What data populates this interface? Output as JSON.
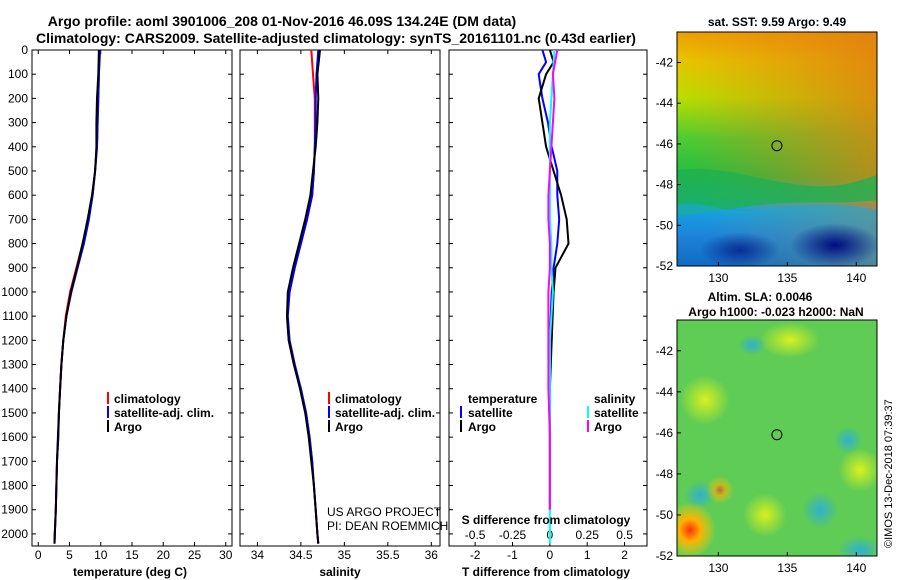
{
  "title_line1": "Argo profile: aoml 3901006_208 01-Nov-2016 46.09S 134.24E (DM data)",
  "title_line2": "Climatology: CARS2009. Satellite-adjusted climatology: synTS_20161101.nc (0.43d earlier)",
  "map1_title": "sat. SST: 9.59 Argo: 9.49",
  "map2_title1": "Altim. SLA: 0.0046",
  "map2_title2": "Argo h1000: -0.023 h2000: NaN",
  "watermark": "©IMOS 13-Dec-2018 07:39:37",
  "project_line1": "US ARGO PROJECT",
  "project_line2": "PI: DEAN ROEMMICH",
  "colors": {
    "climatology": "#ff0000",
    "satellite": "#0000ff",
    "argo": "#000000",
    "sat_salinity": "#00ffff",
    "clim_salinity": "#ff00ff"
  },
  "chart_data": [
    {
      "type": "line",
      "xlabel": "temperature (deg C)",
      "ylabel": "",
      "xlim": [
        -1,
        31
      ],
      "ylim": [
        2050,
        0
      ],
      "xticks": [
        0,
        5,
        10,
        15,
        20,
        25,
        30
      ],
      "yticks": [
        0,
        100,
        200,
        300,
        400,
        500,
        600,
        700,
        800,
        900,
        1000,
        1100,
        1200,
        1300,
        1400,
        1500,
        1600,
        1700,
        1800,
        1900,
        2000
      ],
      "legend": [
        "climatology",
        "satellite-adj. clim.",
        "Argo"
      ],
      "legend_position": "center-right",
      "series": [
        {
          "name": "climatology",
          "color": "#ff0000",
          "depth": [
            0,
            100,
            200,
            300,
            400,
            500,
            600,
            700,
            800,
            900,
            1000,
            1100,
            1200,
            1300,
            1400,
            1500,
            1600,
            1700,
            1800,
            1900,
            2000,
            2040
          ],
          "values": [
            9.8,
            9.7,
            9.6,
            9.5,
            9.4,
            9.1,
            8.7,
            8.0,
            7.1,
            6.1,
            5.1,
            4.4,
            4.0,
            3.7,
            3.5,
            3.3,
            3.2,
            3.0,
            2.9,
            2.8,
            2.65,
            2.6
          ]
        },
        {
          "name": "satellite-adj. clim.",
          "color": "#0000ff",
          "depth": [
            0,
            100,
            200,
            300,
            400,
            500,
            600,
            700,
            800,
            900,
            1000,
            1100,
            1200,
            1300,
            1400,
            1500,
            1600,
            1700,
            1800,
            1900,
            2000,
            2040
          ],
          "values": [
            9.9,
            9.7,
            9.6,
            9.5,
            9.4,
            9.1,
            8.7,
            8.1,
            7.3,
            6.3,
            5.3,
            4.5,
            4.0,
            3.7,
            3.5,
            3.3,
            3.2,
            3.0,
            2.9,
            2.8,
            2.65,
            2.6
          ]
        },
        {
          "name": "Argo",
          "color": "#000000",
          "depth": [
            0,
            100,
            200,
            300,
            400,
            500,
            600,
            700,
            800,
            900,
            1000,
            1100,
            1200,
            1300,
            1400,
            1500,
            1600,
            1700,
            1800,
            1900,
            2000,
            2040
          ],
          "values": [
            9.7,
            9.6,
            9.4,
            9.3,
            9.3,
            9.1,
            8.6,
            7.9,
            7.1,
            6.2,
            5.2,
            4.5,
            4.0,
            3.7,
            3.5,
            3.3,
            3.15,
            3.0,
            2.9,
            2.8,
            2.65,
            2.6
          ]
        }
      ]
    },
    {
      "type": "line",
      "xlabel": "salinity",
      "ylabel": "",
      "xlim": [
        33.8,
        36.1
      ],
      "ylim": [
        2050,
        0
      ],
      "xticks": [
        34,
        34.5,
        35,
        35.5,
        36
      ],
      "legend": [
        "climatology",
        "satellite-adj. clim.",
        "Argo"
      ],
      "legend_position": "center-right",
      "series": [
        {
          "name": "climatology",
          "color": "#ff0000",
          "depth": [
            0,
            100,
            200,
            300,
            400,
            500,
            600,
            700,
            800,
            900,
            1000,
            1100,
            1200,
            1300,
            1400,
            1500,
            1600,
            1700,
            1800,
            1900,
            2000,
            2040
          ],
          "values": [
            34.62,
            34.64,
            34.66,
            34.66,
            34.66,
            34.65,
            34.63,
            34.57,
            34.5,
            34.42,
            34.36,
            34.34,
            34.36,
            34.42,
            34.5,
            34.56,
            34.6,
            34.63,
            34.65,
            34.67,
            34.69,
            34.7
          ]
        },
        {
          "name": "satellite-adj. clim.",
          "color": "#0000ff",
          "depth": [
            0,
            100,
            200,
            300,
            400,
            500,
            600,
            700,
            800,
            900,
            1000,
            1100,
            1200,
            1300,
            1400,
            1500,
            1600,
            1700,
            1800,
            1900,
            2000,
            2040
          ],
          "values": [
            34.7,
            34.68,
            34.67,
            34.67,
            34.66,
            34.65,
            34.63,
            34.57,
            34.5,
            34.43,
            34.37,
            34.35,
            34.37,
            34.43,
            34.5,
            34.56,
            34.6,
            34.63,
            34.65,
            34.67,
            34.69,
            34.7
          ]
        },
        {
          "name": "Argo",
          "color": "#000000",
          "depth": [
            0,
            100,
            200,
            300,
            400,
            500,
            600,
            700,
            800,
            900,
            1000,
            1100,
            1200,
            1300,
            1400,
            1500,
            1600,
            1700,
            1800,
            1900,
            2000,
            2040
          ],
          "values": [
            34.72,
            34.69,
            34.7,
            34.69,
            34.67,
            34.64,
            34.61,
            34.55,
            34.48,
            34.41,
            34.35,
            34.34,
            34.36,
            34.42,
            34.49,
            34.55,
            34.59,
            34.62,
            34.65,
            34.67,
            34.69,
            34.7
          ]
        }
      ]
    },
    {
      "type": "line",
      "xlabel": "T difference from climatology",
      "xlabel_top": "S difference from climatology",
      "xlim": [
        -2.7,
        2.6
      ],
      "ylim": [
        2050,
        0
      ],
      "xticks": [
        -2,
        -1,
        0,
        1,
        2
      ],
      "xticks_top": [
        -0.5,
        -0.25,
        0,
        0.25,
        0.5
      ],
      "xticklabels_top": [
        "-0.5",
        "-0.25",
        "0",
        "0.25",
        "0.5"
      ],
      "legend_groups": [
        {
          "title": "temperature",
          "entries": [
            "satellite",
            "Argo"
          ]
        },
        {
          "title": "salinity",
          "entries": [
            "satellite",
            "Argo"
          ]
        }
      ],
      "series": [
        {
          "name": "temperature satellite",
          "color": "#0000ff",
          "depth": [
            0,
            50,
            100,
            150,
            200,
            300,
            400,
            500,
            600,
            700,
            800,
            900,
            1000,
            1200,
            1400,
            1600,
            1800,
            1900
          ],
          "values": [
            -0.2,
            -0.1,
            -0.3,
            -0.25,
            -0.2,
            -0.05,
            0.05,
            0.2,
            0.2,
            0.25,
            0.2,
            0.1,
            0.05,
            0.0,
            0.0,
            0.0,
            0.0,
            0.0
          ]
        },
        {
          "name": "temperature Argo",
          "color": "#000000",
          "depth": [
            0,
            50,
            100,
            150,
            200,
            300,
            400,
            500,
            600,
            700,
            800,
            900,
            1000,
            1200,
            1400,
            1600,
            1800,
            1900
          ],
          "values": [
            0.0,
            0.1,
            -0.1,
            -0.2,
            -0.3,
            -0.2,
            -0.1,
            0.1,
            0.3,
            0.45,
            0.5,
            0.15,
            0.1,
            0.05,
            0.0,
            0.0,
            0.0,
            0.0
          ]
        },
        {
          "name": "salinity satellite",
          "color": "#00ffff",
          "depth": [
            0,
            100,
            200,
            300,
            400,
            500,
            600,
            700,
            800,
            900,
            1000,
            1200,
            1400,
            1600,
            1800,
            2000,
            2040
          ],
          "values": [
            0.03,
            0.02,
            0.01,
            0.0,
            0.0,
            0.0,
            0.0,
            0.0,
            0.01,
            0.01,
            0.02,
            0.0,
            0.0,
            0.0,
            0.0,
            0.0,
            0.0
          ]
        },
        {
          "name": "salinity Argo",
          "color": "#ff00ff",
          "depth": [
            0,
            100,
            200,
            300,
            400,
            500,
            600,
            700,
            800,
            900,
            1000,
            1200,
            1400,
            1600,
            1800,
            1900
          ],
          "values": [
            0.05,
            0.02,
            0.03,
            0.02,
            0.01,
            0.0,
            -0.01,
            -0.01,
            0.0,
            0.0,
            -0.01,
            -0.01,
            -0.01,
            0.0,
            0.0,
            0.0
          ]
        }
      ]
    },
    {
      "type": "heatmap",
      "title": "sat. SST: 9.59 Argo: 9.49",
      "xlim": [
        127,
        141.5
      ],
      "ylim": [
        -52,
        -40.5
      ],
      "xticks": [
        130,
        135,
        140
      ],
      "yticks": [
        -42,
        -44,
        -46,
        -48,
        -50,
        -52
      ],
      "marker": [
        134.24,
        -46.09
      ]
    },
    {
      "type": "heatmap",
      "title": "Altim. SLA: 0.0046",
      "subtitle": "Argo h1000: -0.023 h2000: NaN",
      "xlim": [
        127,
        141.5
      ],
      "ylim": [
        -52,
        -40.5
      ],
      "xticks": [
        130,
        135,
        140
      ],
      "yticks": [
        -42,
        -44,
        -46,
        -48,
        -50,
        -52
      ],
      "marker": [
        134.24,
        -46.09
      ]
    }
  ]
}
